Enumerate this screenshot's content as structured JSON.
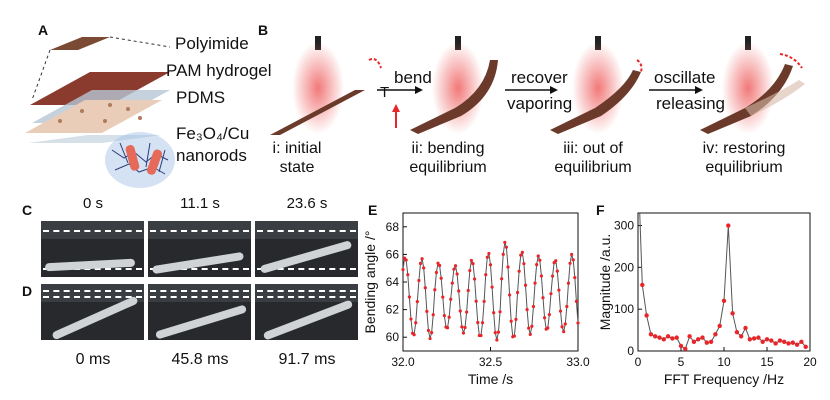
{
  "panels": {
    "A": "A",
    "B": "B",
    "C": "C",
    "D": "D",
    "E": "E",
    "F": "F"
  },
  "panel_a": {
    "layers": [
      "Polyimide",
      "PAM hydrogel",
      "PDMS"
    ],
    "particle_line1": "Fe₃O₄/Cu",
    "particle_line2": "nanorods"
  },
  "panel_b": {
    "arrows": {
      "bend": "bend",
      "recover": "recover",
      "oscillate": "oscillate",
      "vaporing": "vaporing",
      "releasing": "releasing",
      "t": "T"
    },
    "states": [
      {
        "line1": "i: initial",
        "line2": "state"
      },
      {
        "line1": "ii: bending",
        "line2": "equilibrium"
      },
      {
        "line1": "iii: out of",
        "line2": "equilibrium"
      },
      {
        "line1": "iv: restoring",
        "line2": "equilibrium"
      }
    ]
  },
  "panel_c": {
    "times": [
      "0 s",
      "11.1 s",
      "23.6 s"
    ]
  },
  "panel_d": {
    "times": [
      "0 ms",
      "45.8 ms",
      "91.7 ms"
    ]
  },
  "colors": {
    "marker": "#e8262a",
    "line": "#555555",
    "film": "#6b3a2a",
    "glow": "#f08080"
  },
  "chart_data": [
    {
      "panel": "E",
      "type": "line",
      "xlabel": "Time /s",
      "ylabel": "Bending angle /°",
      "xlim": [
        32.0,
        33.0
      ],
      "ylim": [
        59,
        69
      ],
      "xticks": [
        "32.0",
        "32.5",
        "33.0"
      ],
      "yticks": [
        "60",
        "62",
        "64",
        "66",
        "68"
      ],
      "oscillation_hz": 10.5,
      "cycles": [
        {
          "peak": 65.8,
          "trough": 60.1
        },
        {
          "peak": 65.7,
          "trough": 59.9
        },
        {
          "peak": 65.4,
          "trough": 60.6
        },
        {
          "peak": 65.2,
          "trough": 60.3
        },
        {
          "peak": 65.6,
          "trough": 60.0
        },
        {
          "peak": 66.1,
          "trough": 59.8
        },
        {
          "peak": 66.9,
          "trough": 59.9
        },
        {
          "peak": 66.2,
          "trough": 60.2
        },
        {
          "peak": 65.9,
          "trough": 60.5
        },
        {
          "peak": 65.6,
          "trough": 60.4
        },
        {
          "peak": 66.0,
          "trough": 60.1
        }
      ]
    },
    {
      "panel": "F",
      "type": "line",
      "xlabel": "FFT Frequency /Hz",
      "ylabel": "Magnitude /a.u.",
      "xlim": [
        0,
        20
      ],
      "ylim": [
        0,
        330
      ],
      "xticks": [
        "0",
        "5",
        "10",
        "15",
        "20"
      ],
      "yticks": [
        "0",
        "100",
        "200",
        "300"
      ],
      "x": [
        0.5,
        1,
        1.5,
        2,
        2.5,
        3,
        3.5,
        4,
        4.5,
        5,
        5.5,
        6,
        6.5,
        7,
        7.5,
        8,
        8.5,
        9,
        9.5,
        10,
        10.5,
        11,
        11.5,
        12,
        12.5,
        13,
        13.5,
        14,
        14.5,
        15,
        15.5,
        16,
        16.5,
        17,
        17.5,
        18,
        18.5,
        19,
        19.5
      ],
      "values": [
        158,
        85,
        40,
        35,
        32,
        28,
        35,
        30,
        32,
        12,
        5,
        35,
        22,
        28,
        32,
        20,
        22,
        40,
        60,
        120,
        300,
        90,
        45,
        35,
        55,
        28,
        30,
        32,
        22,
        28,
        25,
        18,
        25,
        22,
        18,
        20,
        15,
        22,
        10
      ]
    }
  ]
}
